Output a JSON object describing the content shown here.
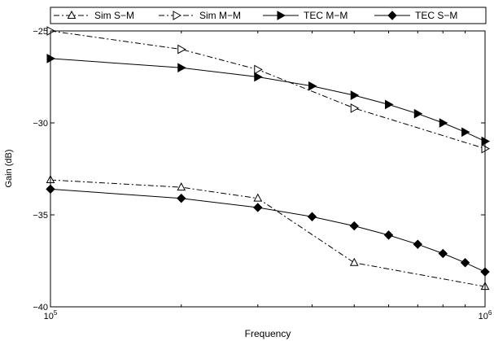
{
  "chart_data": {
    "type": "line",
    "title": "",
    "xlabel": "Frequency",
    "ylabel": "Gain (dB)",
    "xscale": "log",
    "xlim": [
      100000,
      1000000
    ],
    "ylim": [
      -40,
      -25
    ],
    "legend_position": "top",
    "grid": false,
    "x_ticks": [
      {
        "value": 100000,
        "base": "10",
        "exp": "5"
      },
      {
        "value": 1000000,
        "base": "10",
        "exp": "6"
      }
    ],
    "y_ticks": [
      {
        "value": -25,
        "label": "−25"
      },
      {
        "value": -30,
        "label": "−30"
      },
      {
        "value": -35,
        "label": "−35"
      },
      {
        "value": -40,
        "label": "−40"
      }
    ],
    "series": [
      {
        "name": "Sim S−M",
        "marker": "triangle-up",
        "filled": false,
        "dash": "dashdot",
        "color": "#000000",
        "points": [
          [
            100000,
            -33.1
          ],
          [
            200000,
            -33.5
          ],
          [
            300000,
            -34.1
          ],
          [
            500000,
            -37.6
          ],
          [
            1000000,
            -38.9
          ]
        ]
      },
      {
        "name": "Sim M−M",
        "marker": "triangle-right",
        "filled": false,
        "dash": "dashdot",
        "color": "#000000",
        "points": [
          [
            100000,
            -25.0
          ],
          [
            200000,
            -26.0
          ],
          [
            300000,
            -27.1
          ],
          [
            500000,
            -29.2
          ],
          [
            1000000,
            -31.4
          ]
        ]
      },
      {
        "name": "TEC M−M",
        "marker": "triangle-right",
        "filled": true,
        "dash": "solid",
        "color": "#000000",
        "points": [
          [
            100000,
            -26.5
          ],
          [
            200000,
            -27.0
          ],
          [
            300000,
            -27.5
          ],
          [
            400000,
            -28.0
          ],
          [
            500000,
            -28.5
          ],
          [
            600000,
            -29.0
          ],
          [
            700000,
            -29.5
          ],
          [
            800000,
            -30.0
          ],
          [
            900000,
            -30.5
          ],
          [
            1000000,
            -31.0
          ]
        ]
      },
      {
        "name": "TEC S−M",
        "marker": "diamond",
        "filled": true,
        "dash": "solid",
        "color": "#000000",
        "points": [
          [
            100000,
            -33.6
          ],
          [
            200000,
            -34.1
          ],
          [
            300000,
            -34.6
          ],
          [
            400000,
            -35.1
          ],
          [
            500000,
            -35.6
          ],
          [
            600000,
            -36.1
          ],
          [
            700000,
            -36.6
          ],
          [
            800000,
            -37.1
          ],
          [
            900000,
            -37.6
          ],
          [
            1000000,
            -38.1
          ]
        ]
      }
    ]
  }
}
